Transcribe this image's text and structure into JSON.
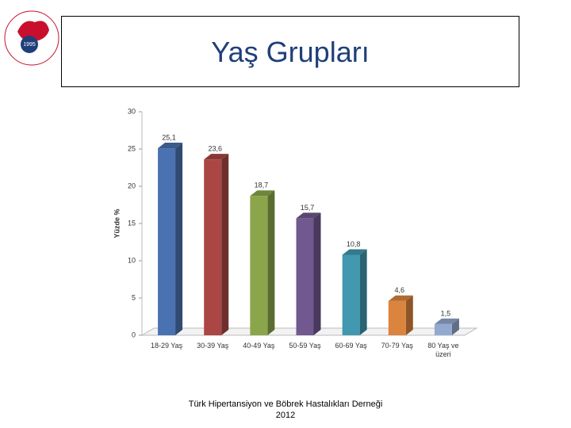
{
  "logo": {
    "year": "1995"
  },
  "chart_data": {
    "type": "bar3d",
    "title": "Yaş Grupları",
    "y_label": "Yüzde %",
    "categories": [
      "18-29 Yaş",
      "30-39 Yaş",
      "40-49 Yaş",
      "50-59 Yaş",
      "60-69 Yaş",
      "70-79 Yaş",
      "80 Yaş ve üzeri"
    ],
    "values": [
      25.1,
      23.6,
      18.7,
      15.7,
      10.8,
      4.6,
      1.5
    ],
    "value_labels": [
      "25,1",
      "23,6",
      "18,7",
      "15,7",
      "10,8",
      "4,6",
      "1,5"
    ],
    "colors": [
      "#4a72b0",
      "#aa4643",
      "#8ba64a",
      "#71588f",
      "#4198af",
      "#db843d",
      "#93a9cf"
    ],
    "ylim": [
      0,
      30
    ],
    "yticks": [
      0,
      5,
      10,
      15,
      20,
      25,
      30
    ],
    "grid": false
  },
  "footer": {
    "line1": "Türk Hipertansiyon ve Böbrek Hastalıkları Derneği",
    "line2": "2012"
  }
}
